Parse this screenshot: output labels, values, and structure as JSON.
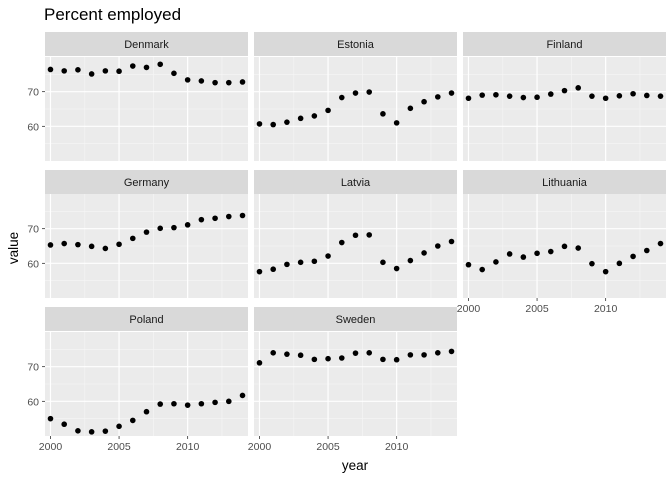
{
  "chart_data": {
    "type": "scatter",
    "title": "Percent employed",
    "xlabel": "year",
    "ylabel": "value",
    "xlim": [
      1999.6,
      2014.4
    ],
    "ylim": [
      50,
      80
    ],
    "x_ticks": [
      2000,
      2005,
      2010
    ],
    "y_ticks": [
      60,
      70
    ],
    "grid": true,
    "facet_columns": 3,
    "x": [
      2000,
      2001,
      2002,
      2003,
      2004,
      2005,
      2006,
      2007,
      2008,
      2009,
      2010,
      2011,
      2012,
      2013,
      2014
    ],
    "series": [
      {
        "name": "Denmark",
        "values": [
          76.4,
          76.0,
          76.3,
          75.1,
          76.0,
          75.9,
          77.4,
          77.0,
          77.9,
          75.3,
          73.4,
          73.1,
          72.6,
          72.6,
          72.8
        ]
      },
      {
        "name": "Estonia",
        "values": [
          60.7,
          60.5,
          61.2,
          62.3,
          63.0,
          64.6,
          68.3,
          69.6,
          69.9,
          63.6,
          61.0,
          65.2,
          67.1,
          68.5,
          69.6
        ]
      },
      {
        "name": "Finland",
        "values": [
          68.1,
          69.0,
          69.1,
          68.7,
          68.3,
          68.4,
          69.3,
          70.3,
          71.1,
          68.7,
          68.1,
          68.8,
          69.4,
          68.9,
          68.7
        ]
      },
      {
        "name": "Germany",
        "values": [
          65.3,
          65.7,
          65.4,
          64.9,
          64.3,
          65.5,
          67.2,
          69.0,
          70.1,
          70.3,
          71.1,
          72.6,
          73.0,
          73.5,
          73.8
        ]
      },
      {
        "name": "Latvia",
        "values": [
          57.6,
          58.3,
          59.7,
          60.3,
          60.6,
          62.1,
          66.0,
          68.1,
          68.2,
          60.3,
          58.5,
          60.8,
          63.0,
          65.0,
          66.3
        ]
      },
      {
        "name": "Lithuania",
        "values": [
          59.6,
          58.2,
          60.4,
          62.7,
          61.8,
          62.9,
          63.4,
          64.9,
          64.4,
          59.9,
          57.6,
          60.0,
          62.0,
          63.7,
          65.7
        ]
      },
      {
        "name": "Poland",
        "values": [
          55.0,
          53.4,
          51.5,
          51.2,
          51.4,
          52.8,
          54.5,
          57.0,
          59.2,
          59.3,
          58.9,
          59.3,
          59.7,
          60.0,
          61.7
        ]
      },
      {
        "name": "Sweden",
        "values": [
          71.1,
          74.0,
          73.6,
          73.3,
          72.1,
          72.3,
          72.5,
          73.9,
          74.0,
          72.1,
          72.0,
          73.4,
          73.4,
          74.0,
          74.4
        ]
      }
    ]
  }
}
